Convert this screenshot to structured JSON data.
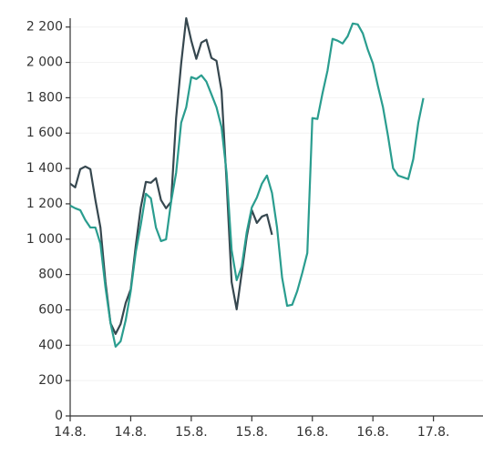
{
  "chart_data": {
    "type": "line",
    "x": [
      0,
      1,
      2,
      3,
      4,
      5,
      6,
      7,
      8,
      9,
      10,
      11,
      12,
      13,
      14,
      15,
      16,
      17,
      18,
      19,
      20,
      21,
      22,
      23,
      24,
      25,
      26,
      27,
      28,
      29,
      30,
      31,
      32,
      33,
      34,
      35,
      36,
      37,
      38,
      39,
      40,
      41,
      42,
      43,
      44,
      45,
      46,
      47,
      48,
      49,
      50,
      51,
      52,
      53,
      54,
      55,
      56,
      57,
      58,
      59,
      60,
      61,
      62,
      63,
      64,
      65,
      66,
      67,
      68,
      69,
      70
    ],
    "xlim": [
      0,
      82
    ],
    "xticks": [
      {
        "value": 0,
        "label": "14.8."
      },
      {
        "value": 12,
        "label": "14.8."
      },
      {
        "value": 24,
        "label": "15.8."
      },
      {
        "value": 36,
        "label": "15.8."
      },
      {
        "value": 48,
        "label": "16.8."
      },
      {
        "value": 60,
        "label": "16.8."
      },
      {
        "value": 72,
        "label": "17.8."
      }
    ],
    "ylim": [
      0,
      2250
    ],
    "yticks": [
      0,
      200,
      400,
      600,
      800,
      {
        "value": 1000,
        "label": "1 000"
      },
      {
        "value": 1200,
        "label": "1 200"
      },
      {
        "value": 1400,
        "label": "1 400"
      },
      {
        "value": 1600,
        "label": "1 600"
      },
      {
        "value": 1800,
        "label": "1 800"
      },
      {
        "value": 2000,
        "label": "2 000"
      },
      {
        "value": 2200,
        "label": "2 200"
      }
    ],
    "grid": true,
    "series": [
      {
        "color": "#36474f",
        "values": [
          1314,
          1293,
          1396,
          1411,
          1396,
          1221,
          1066,
          757,
          525,
          464,
          520,
          639,
          716,
          963,
          1180,
          1324,
          1319,
          1345,
          1221,
          1175,
          1211,
          1685,
          1994,
          2250,
          2123,
          2020,
          2112,
          2128,
          2025,
          2009,
          1839,
          1324,
          757,
          603,
          809,
          1015,
          1164,
          1092,
          1128,
          1139,
          1025,
          null,
          null,
          null,
          null,
          null,
          null,
          null,
          null,
          null,
          null,
          null,
          null,
          null,
          null,
          null,
          null,
          null,
          null,
          null,
          null,
          null,
          null,
          null,
          null,
          null,
          null,
          null,
          null,
          null,
          null
        ]
      },
      {
        "color": "#2a9d8f",
        "values": [
          1190,
          1175,
          1164,
          1108,
          1066,
          1066,
          974,
          726,
          525,
          392,
          422,
          541,
          706,
          927,
          1082,
          1257,
          1231,
          1066,
          989,
          999,
          1211,
          1376,
          1659,
          1746,
          1917,
          1906,
          1927,
          1891,
          1819,
          1746,
          1633,
          1376,
          938,
          768,
          845,
          1041,
          1180,
          1236,
          1314,
          1360,
          1262,
          1066,
          783,
          623,
          629,
          706,
          809,
          922,
          1685,
          1680,
          1824,
          1953,
          2133,
          2123,
          2107,
          2148,
          2220,
          2215,
          2164,
          2071,
          1994,
          1865,
          1746,
          1582,
          1401,
          1360,
          1350,
          1340,
          1453,
          1659,
          1798
        ]
      }
    ]
  }
}
